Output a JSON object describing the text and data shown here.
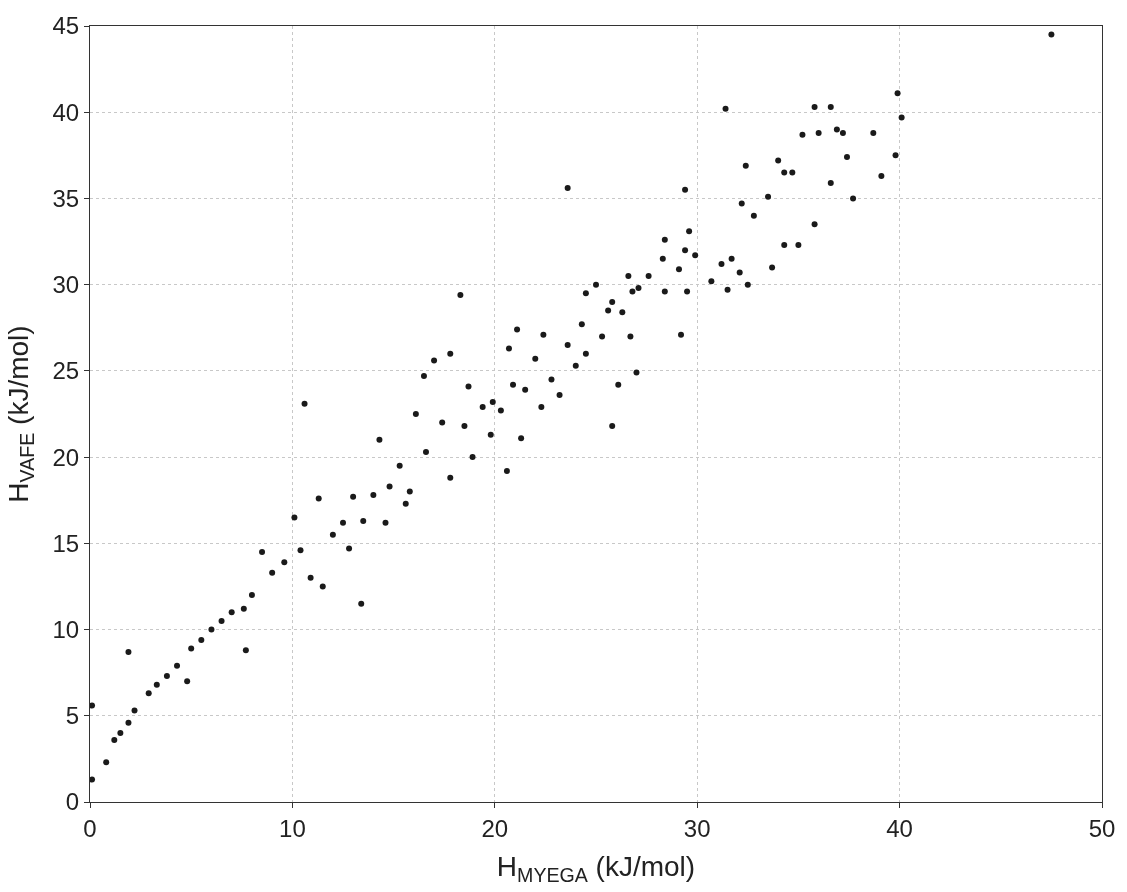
{
  "chart_data": {
    "type": "scatter",
    "xlabel": "H$_{MYEGA}$ (kJ/mol)",
    "ylabel": "H$_{VAFE}$ (kJ/mol)",
    "xlim": [
      0,
      50
    ],
    "ylim": [
      0,
      45
    ],
    "xticks": [
      0,
      10,
      20,
      30,
      40,
      50
    ],
    "yticks": [
      0,
      5,
      10,
      15,
      20,
      25,
      30,
      35,
      40,
      45
    ],
    "grid": true,
    "marker": "circle",
    "legend": false,
    "series": [
      {
        "color": "#1a1a1a",
        "x": [
          47.5,
          0.1,
          0.1,
          1.9,
          10.6,
          13.4,
          18.3,
          23.6,
          31.4,
          39.9,
          40.1,
          39.8,
          7.7,
          25.8,
          20.6,
          29.4,
          35.8,
          36.6,
          36.0,
          35.2,
          36.9,
          37.2,
          38.7,
          37.4,
          36.6,
          37.7,
          39.1,
          35.8,
          34.0,
          34.3,
          34.7,
          32.4,
          33.5,
          32.8,
          32.2,
          34.3,
          35.0,
          33.7,
          31.2,
          31.7,
          32.1,
          32.5,
          31.5,
          30.7,
          29.9,
          29.6,
          29.4,
          29.1,
          29.5,
          29.2,
          28.4,
          28.3,
          28.4,
          27.6,
          26.6,
          26.8,
          27.1,
          25.8,
          25.0,
          24.5,
          26.3,
          25.6,
          26.7,
          27.0,
          26.1,
          25.3,
          24.3,
          24.5,
          24.0,
          23.6,
          22.4,
          22.0,
          23.2,
          22.3,
          21.5,
          21.1,
          20.7,
          20.9,
          20.3,
          19.8,
          19.4,
          18.7,
          18.5,
          17.8,
          17.4,
          17.0,
          16.5,
          16.1,
          15.8,
          15.3,
          14.8,
          14.3,
          14.0,
          13.5,
          13.0,
          12.5,
          12.0,
          11.3,
          11.5,
          10.4,
          10.1,
          9.6,
          9.0,
          8.5,
          8.0,
          7.6,
          7.0,
          6.5,
          6.0,
          5.5,
          5.0,
          4.8,
          4.3,
          3.8,
          3.3,
          2.9,
          2.2,
          1.9,
          1.5,
          1.2,
          0.8,
          16.6,
          17.8,
          18.9,
          21.3,
          22.8,
          12.8,
          10.9,
          15.6,
          19.9,
          14.6
        ],
        "values": [
          44.5,
          5.6,
          1.3,
          8.7,
          23.1,
          11.5,
          29.4,
          35.6,
          40.2,
          41.1,
          39.7,
          37.5,
          8.8,
          21.8,
          19.2,
          35.5,
          40.3,
          40.3,
          38.8,
          38.7,
          39.0,
          38.8,
          38.8,
          37.4,
          35.9,
          35.0,
          36.3,
          33.5,
          37.2,
          36.5,
          36.5,
          36.9,
          35.1,
          34.0,
          34.7,
          32.3,
          32.3,
          31.0,
          31.2,
          31.5,
          30.7,
          30.0,
          29.7,
          30.2,
          31.7,
          33.1,
          32.0,
          30.9,
          29.6,
          27.1,
          32.6,
          31.5,
          29.6,
          30.5,
          30.5,
          29.6,
          29.8,
          29.0,
          30.0,
          29.5,
          28.4,
          28.5,
          27.0,
          24.9,
          24.2,
          27.0,
          27.7,
          26.0,
          25.3,
          26.5,
          27.1,
          25.7,
          23.6,
          22.9,
          23.9,
          27.4,
          26.3,
          24.2,
          22.7,
          21.3,
          22.9,
          24.1,
          21.8,
          26.0,
          22.0,
          25.6,
          24.7,
          22.5,
          18.0,
          19.5,
          18.3,
          21.0,
          17.8,
          16.3,
          17.7,
          16.2,
          15.5,
          17.6,
          12.5,
          14.6,
          16.5,
          13.9,
          13.3,
          14.5,
          12.0,
          11.2,
          11.0,
          10.5,
          10.0,
          9.4,
          8.9,
          7.0,
          7.9,
          7.3,
          6.8,
          6.3,
          5.3,
          4.6,
          4.0,
          3.6,
          2.3,
          20.3,
          18.8,
          20.0,
          21.1,
          24.5,
          14.7,
          13.0,
          17.3,
          23.2,
          16.2
        ]
      }
    ]
  }
}
